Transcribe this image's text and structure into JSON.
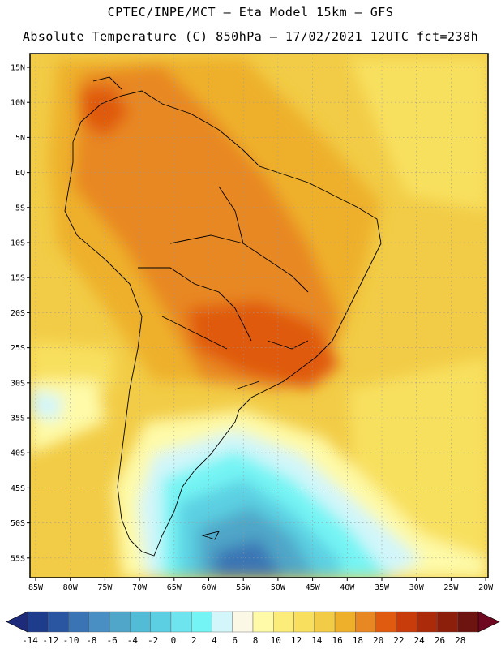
{
  "title": {
    "line1": "CPTEC/INPE/MCT –  Eta Model 15km – GFS",
    "line2": "Absolute Temperature (C) 850hPa – 17/02/2021 12UTC fct=238h"
  },
  "map": {
    "lat_labels": [
      "15N",
      "10N",
      "5N",
      "EQ",
      "5S",
      "10S",
      "15S",
      "20S",
      "25S",
      "30S",
      "35S",
      "40S",
      "45S",
      "50S",
      "55S"
    ],
    "lon_labels": [
      "85W",
      "80W",
      "75W",
      "70W",
      "65W",
      "60W",
      "55W",
      "50W",
      "45W",
      "40W",
      "35W",
      "30W",
      "25W",
      "20W"
    ]
  },
  "colorbar": {
    "labels": [
      "-14",
      "-12",
      "-10",
      "-8",
      "-6",
      "-4",
      "-2",
      "0",
      "2",
      "4",
      "6",
      "8",
      "10",
      "12",
      "14",
      "16",
      "18",
      "20",
      "22",
      "24",
      "26",
      "28"
    ],
    "colors": [
      "#1e3c8c",
      "#2a55a0",
      "#3a74b4",
      "#4a8fc4",
      "#4fa6c8",
      "#52bcd6",
      "#5cd0e2",
      "#6ee4ee",
      "#74f4f4",
      "#d2f6fa",
      "#fcf8e6",
      "#fefaa8",
      "#fcec7a",
      "#f8e05e",
      "#f2cc46",
      "#eeb02a",
      "#e88822",
      "#e05a10",
      "#c83c0c",
      "#aa2a0a",
      "#8c1e0c",
      "#6e1410"
    ],
    "low_arrow_color": "#1e2a7a",
    "high_arrow_color": "#6e0820"
  }
}
